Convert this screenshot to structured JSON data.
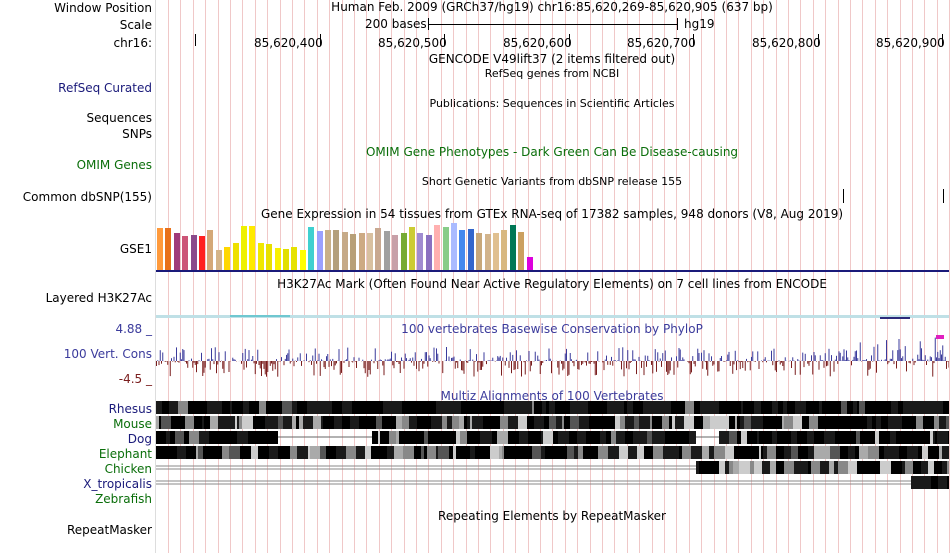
{
  "header": {
    "window_position_label": "Window Position",
    "window_position_value": "Human Feb. 2009 (GRCh37/hg19)   chr16:85,620,269-85,620,905 (637 bp)",
    "scale_label": "Scale",
    "scale_value": "200 bases",
    "scale_assembly": "hg19",
    "chrom_label": "chr16:",
    "ruler_ticks": [
      "85,620,400",
      "85,620,500",
      "85,620,600",
      "85,620,700",
      "85,620,800",
      "85,620,900"
    ]
  },
  "tracks": {
    "gencode_title": "GENCODE V49lift37 (2 items filtered out)",
    "refseq_label": "RefSeq Curated",
    "refseq_title": "RefSeq genes from NCBI",
    "sequences_label": "Sequences",
    "publications_title": "Publications: Sequences in Scientific Articles",
    "snps_label": "SNPs",
    "omim_label": "OMIM Genes",
    "omim_title": "OMIM Gene Phenotypes - Dark Green Can Be Disease-causing",
    "dbsnp_title": "Short Genetic Variants from dbSNP release 155",
    "dbsnp_label": "Common dbSNP(155)",
    "gtex_title": "Gene Expression in 54 tissues from GTEx RNA-seq of 17382 samples, 948 donors (V8, Aug 2019)",
    "gse_label": "GSE1",
    "h3k27ac_title": "H3K27Ac Mark (Often Found Near Active Regulatory Elements) on 7 cell lines from ENCODE",
    "h3k27ac_label": "Layered H3K27Ac",
    "cons_max": "4.88 _",
    "cons_title": "100 vertebrates Basewise Conservation by PhyloP",
    "cons_label": "100 Vert. Cons",
    "cons_min": "-4.5 _",
    "multiz_title": "Multiz Alignments of 100 Vertebrates",
    "species": [
      {
        "name": "Rhesus",
        "color": "#1a1a7a"
      },
      {
        "name": "Mouse",
        "color": "#0a6e0a"
      },
      {
        "name": "Dog",
        "color": "#1a1a7a"
      },
      {
        "name": "Elephant",
        "color": "#0a6e0a"
      },
      {
        "name": "Chicken",
        "color": "#0a6e0a"
      },
      {
        "name": "X_tropicalis",
        "color": "#1a1a7a"
      },
      {
        "name": "Zebrafish",
        "color": "#0a6e0a"
      }
    ],
    "repeat_title": "Repeating Elements by RepeatMasker",
    "repeat_label": "RepeatMasker"
  },
  "gtex_colors": [
    "#ff9a3c",
    "#e8711a",
    "#a03a7a",
    "#cc5577",
    "#8b4a8b",
    "#ff2020",
    "#d4a878",
    "#d4b488",
    "#ffd700",
    "#eee000",
    "#eef000",
    "#ffea00",
    "#f0e800",
    "#e8e000",
    "#f8f000",
    "#e2df00",
    "#e6e200",
    "#ffff00",
    "#40d0d0",
    "#9aa0ff",
    "#c8b088",
    "#b4a07c",
    "#c6aa88",
    "#b8a078",
    "#cdaa84",
    "#d8c0a0",
    "#c8a890",
    "#a0a0a0",
    "#c8a0a8",
    "#77aa33",
    "#cccc33",
    "#a08cd0",
    "#8a70c0",
    "#ffb0b0",
    "#88cc88",
    "#aabbff",
    "#4488ee",
    "#3366cc",
    "#c8a87a",
    "#d2b48c",
    "#e0c090",
    "#d8b880",
    "#007755",
    "#cca060",
    "#dd00dd"
  ],
  "gtex_heights": [
    42,
    42,
    37,
    34,
    35,
    34,
    40,
    20,
    23,
    27,
    44,
    44,
    27,
    26,
    22,
    21,
    23,
    20,
    43,
    39,
    40,
    40,
    38,
    36,
    37,
    37,
    42,
    39,
    35,
    37,
    43,
    37,
    35,
    45,
    43,
    47,
    40,
    41,
    37,
    36,
    37,
    40,
    45,
    38,
    13
  ]
}
